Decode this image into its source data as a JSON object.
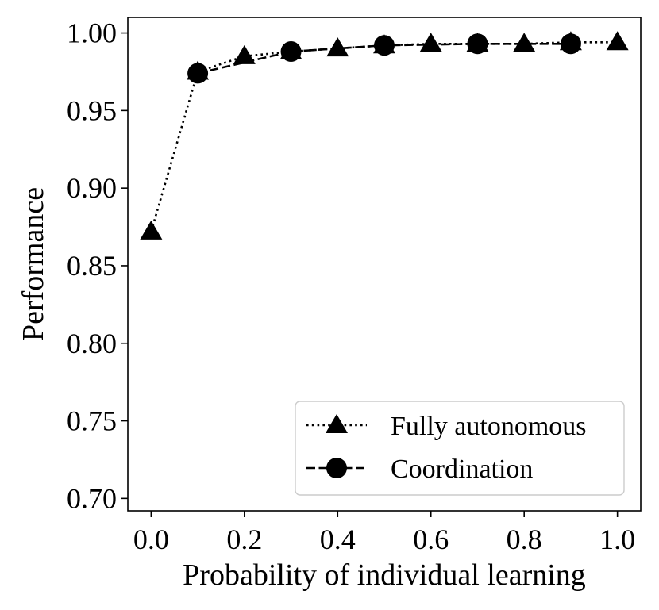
{
  "chart_data": {
    "type": "line",
    "title": "",
    "xlabel": "Probability of individual learning",
    "ylabel": "Performance",
    "xlim": [
      -0.05,
      1.05
    ],
    "ylim": [
      0.692,
      1.01
    ],
    "xticks": [
      "0.0",
      "0.2",
      "0.4",
      "0.6",
      "0.8",
      "1.0"
    ],
    "yticks": [
      "0.70",
      "0.75",
      "0.80",
      "0.85",
      "0.90",
      "0.95",
      "1.00"
    ],
    "x": [
      0.0,
      0.1,
      0.2,
      0.3,
      0.4,
      0.5,
      0.6,
      0.7,
      0.8,
      0.9,
      1.0
    ],
    "grid": false,
    "legend_position": "lower-right",
    "series": [
      {
        "name": "Fully autonomous",
        "values": [
          0.872,
          0.975,
          0.985,
          0.988,
          0.99,
          0.992,
          0.993,
          0.993,
          0.993,
          0.994,
          0.994
        ],
        "marker": "triangle",
        "line_style": "dotted",
        "color": "#000000"
      },
      {
        "name": "Coordination",
        "values": [
          null,
          0.974,
          null,
          0.988,
          null,
          0.992,
          null,
          0.993,
          null,
          0.993,
          null
        ],
        "marker": "circle",
        "line_style": "dashed",
        "color": "#000000"
      }
    ]
  }
}
